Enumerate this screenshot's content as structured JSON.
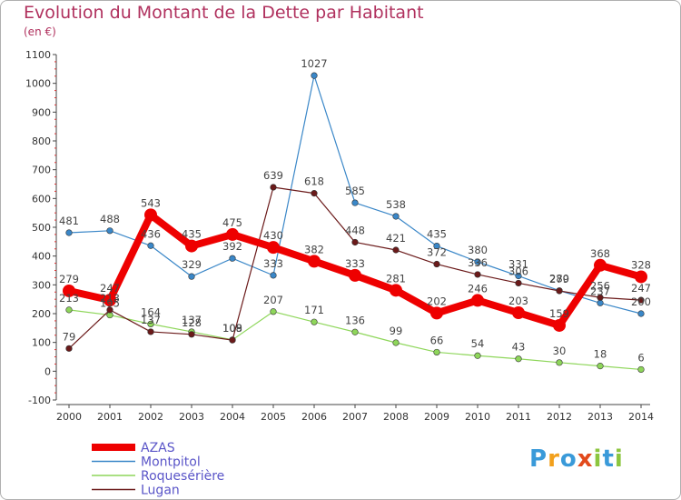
{
  "title": "Evolution du Montant de la Dette par Habitant",
  "unit_label": "(en €)",
  "logo": {
    "text": "Proxiti",
    "letters": [
      "P",
      "r",
      "o",
      "x",
      "i",
      "t",
      "i"
    ],
    "colors": [
      "#3a9ad9",
      "#f2a01c",
      "#3a9ad9",
      "#e24a1c",
      "#8cc63f",
      "#3a9ad9",
      "#8cc63f"
    ]
  },
  "chart_data": {
    "type": "line",
    "title": "Evolution du Montant de la Dette par Habitant",
    "ylabel": "(en €)",
    "x": [
      "2000",
      "2001",
      "2002",
      "2003",
      "2004",
      "2005",
      "2006",
      "2007",
      "2008",
      "2009",
      "2010",
      "2011",
      "2012",
      "2013",
      "2014"
    ],
    "ylim": [
      -100,
      1100
    ],
    "yticks": [
      -100,
      0,
      100,
      200,
      300,
      400,
      500,
      600,
      700,
      800,
      900,
      1000,
      1100
    ],
    "grid": false,
    "legend": "bottom-left",
    "series": [
      {
        "name": "AZAS",
        "color": "#ee0000",
        "values": [
          279,
          247,
          543,
          435,
          475,
          430,
          382,
          333,
          281,
          202,
          246,
          203,
          159,
          368,
          328
        ]
      },
      {
        "name": "Montpitol",
        "color": "#3a87c8",
        "values": [
          481,
          488,
          436,
          329,
          392,
          333,
          1027,
          585,
          538,
          435,
          380,
          331,
          280,
          237,
          200
        ]
      },
      {
        "name": "Roquesérière",
        "color": "#8ed65a",
        "values": [
          213,
          195,
          164,
          137,
          109,
          207,
          171,
          136,
          99,
          66,
          54,
          43,
          30,
          18,
          6
        ]
      },
      {
        "name": "Lugan",
        "color": "#6b1a1a",
        "values": [
          79,
          213,
          137,
          128,
          108,
          639,
          618,
          448,
          421,
          372,
          336,
          306,
          279,
          256,
          247
        ]
      }
    ]
  }
}
